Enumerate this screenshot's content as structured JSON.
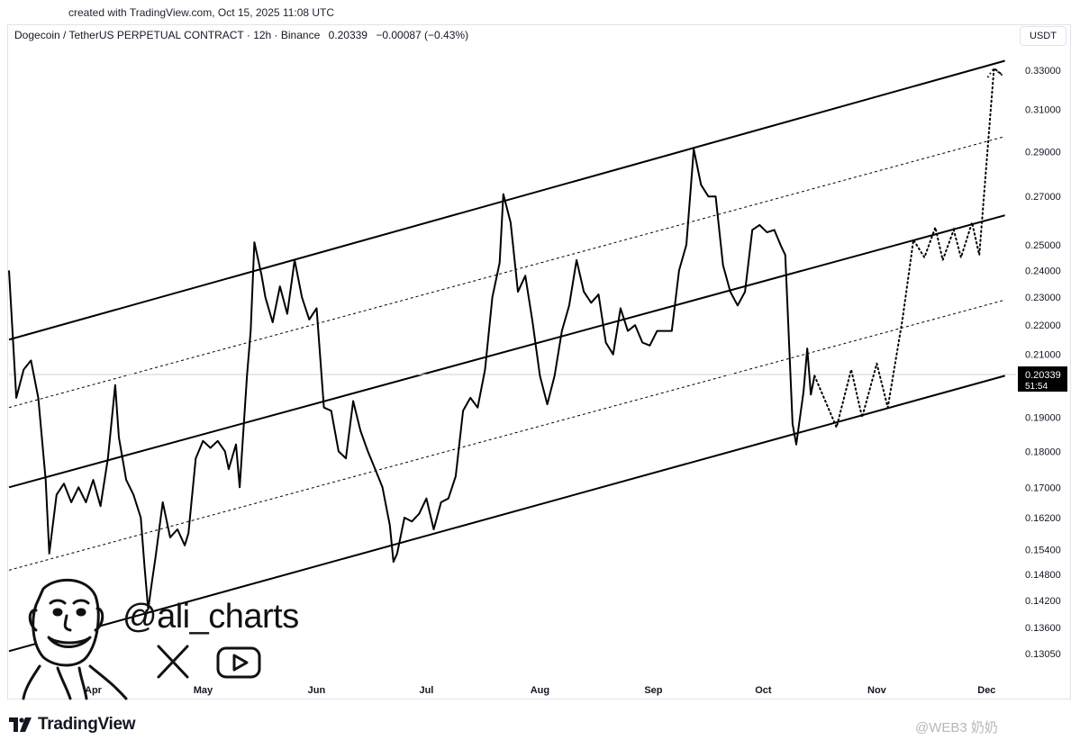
{
  "header": {
    "created": "created with TradingView.com, Oct 15, 2025 11:08 UTC",
    "symbol": "Dogecoin / TetherUS PERPETUAL CONTRACT · 12h · Binance",
    "price": "0.20339",
    "change": "−0.00087 (−0.43%)",
    "currency": "USDT"
  },
  "brand": {
    "name": "TradingView"
  },
  "watermark": "@WEB3 奶奶",
  "overlay": {
    "handle": "@ali_charts",
    "x_icon": "x-logo-icon",
    "youtube_icon": "youtube-icon"
  },
  "chart_data": {
    "type": "line",
    "y_scale": "log",
    "grid": false,
    "y_ticks": [
      "0.33000",
      "0.31000",
      "0.29000",
      "0.27000",
      "0.25000",
      "0.24000",
      "0.23000",
      "0.22000",
      "0.21000",
      "0.19000",
      "0.18000",
      "0.17000",
      "0.16200",
      "0.15400",
      "0.14800",
      "0.14200",
      "0.13600",
      "0.13050"
    ],
    "x_ticks": [
      {
        "label": "Apr",
        "date": "2025-04-01"
      },
      {
        "label": "May",
        "date": "2025-05-01"
      },
      {
        "label": "Jun",
        "date": "2025-06-01"
      },
      {
        "label": "Jul",
        "date": "2025-07-01"
      },
      {
        "label": "Aug",
        "date": "2025-08-01"
      },
      {
        "label": "Sep",
        "date": "2025-09-01"
      },
      {
        "label": "Oct",
        "date": "2025-10-01"
      },
      {
        "label": "Nov",
        "date": "2025-11-01"
      },
      {
        "label": "Dec",
        "date": "2025-12-01"
      }
    ],
    "last_price": {
      "value": "0.20339",
      "label": "0.20339",
      "countdown": "51:54"
    },
    "price_series": [
      [
        "2025-03-09",
        0.24
      ],
      [
        "2025-03-11",
        0.196
      ],
      [
        "2025-03-13",
        0.205
      ],
      [
        "2025-03-15",
        0.208
      ],
      [
        "2025-03-17",
        0.196
      ],
      [
        "2025-03-19",
        0.172
      ],
      [
        "2025-03-20",
        0.153
      ],
      [
        "2025-03-22",
        0.168
      ],
      [
        "2025-03-24",
        0.171
      ],
      [
        "2025-03-26",
        0.166
      ],
      [
        "2025-03-28",
        0.17
      ],
      [
        "2025-03-30",
        0.166
      ],
      [
        "2025-04-01",
        0.172
      ],
      [
        "2025-04-03",
        0.165
      ],
      [
        "2025-04-05",
        0.178
      ],
      [
        "2025-04-07",
        0.2
      ],
      [
        "2025-04-08",
        0.184
      ],
      [
        "2025-04-10",
        0.172
      ],
      [
        "2025-04-12",
        0.168
      ],
      [
        "2025-04-14",
        0.162
      ],
      [
        "2025-04-15",
        0.15
      ],
      [
        "2025-04-16",
        0.14
      ],
      [
        "2025-04-17",
        0.146
      ],
      [
        "2025-04-18",
        0.152
      ],
      [
        "2025-04-20",
        0.166
      ],
      [
        "2025-04-22",
        0.157
      ],
      [
        "2025-04-24",
        0.159
      ],
      [
        "2025-04-26",
        0.155
      ],
      [
        "2025-04-27",
        0.158
      ],
      [
        "2025-04-29",
        0.178
      ],
      [
        "2025-05-01",
        0.183
      ],
      [
        "2025-05-03",
        0.181
      ],
      [
        "2025-05-05",
        0.183
      ],
      [
        "2025-05-07",
        0.18
      ],
      [
        "2025-05-08",
        0.175
      ],
      [
        "2025-05-10",
        0.182
      ],
      [
        "2025-05-11",
        0.17
      ],
      [
        "2025-05-13",
        0.203
      ],
      [
        "2025-05-14",
        0.218
      ],
      [
        "2025-05-15",
        0.251
      ],
      [
        "2025-05-17",
        0.238
      ],
      [
        "2025-05-18",
        0.23
      ],
      [
        "2025-05-20",
        0.221
      ],
      [
        "2025-05-22",
        0.234
      ],
      [
        "2025-05-24",
        0.224
      ],
      [
        "2025-05-26",
        0.244
      ],
      [
        "2025-05-28",
        0.23
      ],
      [
        "2025-05-30",
        0.222
      ],
      [
        "2025-06-01",
        0.226
      ],
      [
        "2025-06-03",
        0.193
      ],
      [
        "2025-06-05",
        0.192
      ],
      [
        "2025-06-07",
        0.18
      ],
      [
        "2025-06-09",
        0.178
      ],
      [
        "2025-06-11",
        0.195
      ],
      [
        "2025-06-13",
        0.186
      ],
      [
        "2025-06-15",
        0.18
      ],
      [
        "2025-06-17",
        0.175
      ],
      [
        "2025-06-19",
        0.17
      ],
      [
        "2025-06-21",
        0.16
      ],
      [
        "2025-06-22",
        0.151
      ],
      [
        "2025-06-23",
        0.153
      ],
      [
        "2025-06-25",
        0.162
      ],
      [
        "2025-06-27",
        0.161
      ],
      [
        "2025-06-29",
        0.163
      ],
      [
        "2025-07-01",
        0.167
      ],
      [
        "2025-07-03",
        0.159
      ],
      [
        "2025-07-05",
        0.166
      ],
      [
        "2025-07-07",
        0.167
      ],
      [
        "2025-07-09",
        0.173
      ],
      [
        "2025-07-11",
        0.192
      ],
      [
        "2025-07-13",
        0.196
      ],
      [
        "2025-07-15",
        0.193
      ],
      [
        "2025-07-17",
        0.205
      ],
      [
        "2025-07-19",
        0.23
      ],
      [
        "2025-07-21",
        0.243
      ],
      [
        "2025-07-22",
        0.271
      ],
      [
        "2025-07-24",
        0.259
      ],
      [
        "2025-07-26",
        0.232
      ],
      [
        "2025-07-28",
        0.238
      ],
      [
        "2025-07-30",
        0.221
      ],
      [
        "2025-08-01",
        0.203
      ],
      [
        "2025-08-03",
        0.194
      ],
      [
        "2025-08-05",
        0.203
      ],
      [
        "2025-08-07",
        0.218
      ],
      [
        "2025-08-09",
        0.227
      ],
      [
        "2025-08-11",
        0.244
      ],
      [
        "2025-08-13",
        0.232
      ],
      [
        "2025-08-15",
        0.228
      ],
      [
        "2025-08-17",
        0.231
      ],
      [
        "2025-08-19",
        0.214
      ],
      [
        "2025-08-21",
        0.21
      ],
      [
        "2025-08-23",
        0.226
      ],
      [
        "2025-08-25",
        0.218
      ],
      [
        "2025-08-27",
        0.22
      ],
      [
        "2025-08-29",
        0.214
      ],
      [
        "2025-08-31",
        0.213
      ],
      [
        "2025-09-02",
        0.218
      ],
      [
        "2025-09-04",
        0.218
      ],
      [
        "2025-09-06",
        0.218
      ],
      [
        "2025-09-08",
        0.24
      ],
      [
        "2025-09-10",
        0.25
      ],
      [
        "2025-09-12",
        0.291
      ],
      [
        "2025-09-14",
        0.275
      ],
      [
        "2025-09-16",
        0.27
      ],
      [
        "2025-09-18",
        0.27
      ],
      [
        "2025-09-20",
        0.242
      ],
      [
        "2025-09-22",
        0.232
      ],
      [
        "2025-09-24",
        0.227
      ],
      [
        "2025-09-26",
        0.232
      ],
      [
        "2025-09-28",
        0.256
      ],
      [
        "2025-09-30",
        0.258
      ],
      [
        "2025-10-02",
        0.255
      ],
      [
        "2025-10-04",
        0.256
      ],
      [
        "2025-10-06",
        0.249
      ],
      [
        "2025-10-07",
        0.246
      ],
      [
        "2025-10-09",
        0.188
      ],
      [
        "2025-10-10",
        0.182
      ],
      [
        "2025-10-12",
        0.198
      ],
      [
        "2025-10-13",
        0.212
      ],
      [
        "2025-10-14",
        0.197
      ],
      [
        "2025-10-15",
        0.203
      ]
    ],
    "projection": [
      [
        "2025-10-15",
        0.203
      ],
      [
        "2025-10-21",
        0.187
      ],
      [
        "2025-10-25",
        0.205
      ],
      [
        "2025-10-28",
        0.19
      ],
      [
        "2025-11-01",
        0.207
      ],
      [
        "2025-11-04",
        0.193
      ],
      [
        "2025-11-08",
        0.222
      ],
      [
        "2025-11-11",
        0.252
      ],
      [
        "2025-11-14",
        0.245
      ],
      [
        "2025-11-17",
        0.257
      ],
      [
        "2025-11-19",
        0.244
      ],
      [
        "2025-11-22",
        0.256
      ],
      [
        "2025-11-24",
        0.245
      ],
      [
        "2025-11-27",
        0.259
      ],
      [
        "2025-11-29",
        0.246
      ],
      [
        "2025-12-03",
        0.331
      ],
      [
        "2025-12-05",
        0.328
      ]
    ],
    "channel_lines": [
      {
        "style": "solid",
        "from": [
          "2025-03-09",
          0.215
        ],
        "to": [
          "2025-12-06",
          0.335
        ]
      },
      {
        "style": "dashed",
        "from": [
          "2025-03-09",
          0.193
        ],
        "to": [
          "2025-12-06",
          0.297
        ]
      },
      {
        "style": "solid",
        "from": [
          "2025-03-09",
          0.17
        ],
        "to": [
          "2025-12-06",
          0.262
        ]
      },
      {
        "style": "dashed",
        "from": [
          "2025-03-09",
          0.149
        ],
        "to": [
          "2025-12-06",
          0.229
        ]
      },
      {
        "style": "solid",
        "from": [
          "2025-03-09",
          0.131
        ],
        "to": [
          "2025-12-06",
          0.203
        ]
      }
    ],
    "colors": {
      "line": "#000000",
      "last_price_bg": "#000000",
      "last_price_text": "#ffffff",
      "current_line": "#cfd1d6"
    }
  }
}
